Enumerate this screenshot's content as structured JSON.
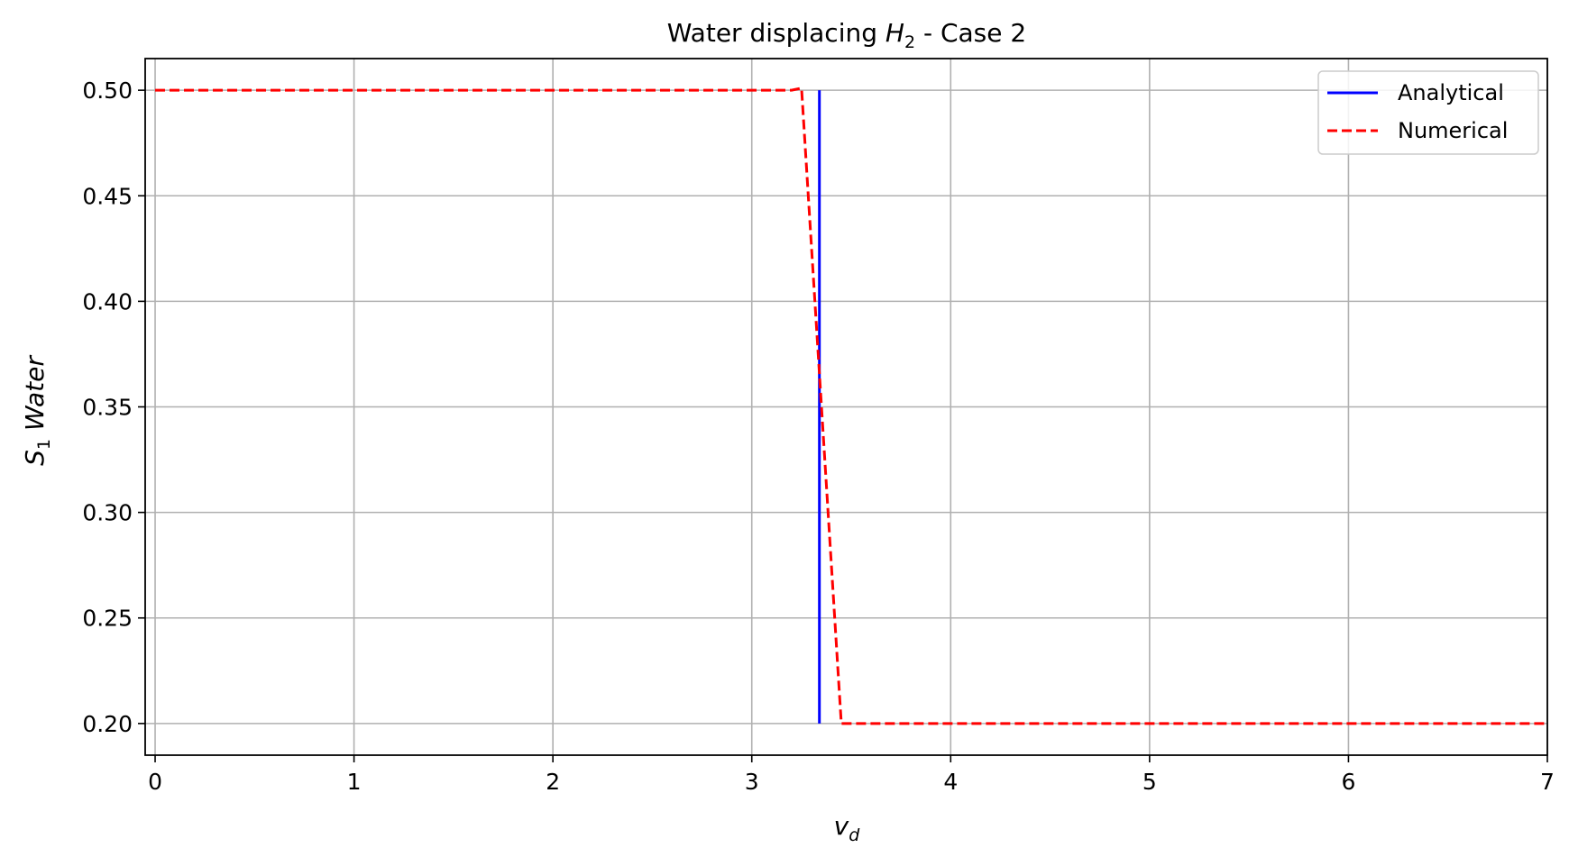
{
  "chart_data": {
    "type": "line",
    "title": {
      "prefix": "Water displacing ",
      "var": "H",
      "sub": "2",
      "suffix": " - Case 2"
    },
    "xlabel": {
      "var": "v",
      "sub": "d"
    },
    "ylabel": {
      "var": "S",
      "sub": "1",
      "rest": " Water"
    },
    "xlim": [
      -0.05,
      7
    ],
    "ylim": [
      0.185,
      0.515
    ],
    "x_ticks": [
      0,
      1,
      2,
      3,
      4,
      5,
      6,
      7
    ],
    "x_tick_labels": [
      "0",
      "1",
      "2",
      "3",
      "4",
      "5",
      "6",
      "7"
    ],
    "y_ticks": [
      0.2,
      0.25,
      0.3,
      0.35,
      0.4,
      0.45,
      0.5
    ],
    "y_tick_labels": [
      "0.20",
      "0.25",
      "0.30",
      "0.35",
      "0.40",
      "0.45",
      "0.50"
    ],
    "grid": true,
    "legend_position": "top-right",
    "series": [
      {
        "name": "Analytical",
        "color": "#0000ff",
        "style": "solid",
        "x": [
          3.34,
          3.34
        ],
        "y": [
          0.2,
          0.5
        ]
      },
      {
        "name": "Numerical",
        "color": "#ff0000",
        "style": "dashed",
        "x": [
          0,
          3.2,
          3.25,
          3.45,
          7
        ],
        "y": [
          0.5,
          0.5,
          0.501,
          0.2,
          0.2
        ]
      }
    ]
  }
}
